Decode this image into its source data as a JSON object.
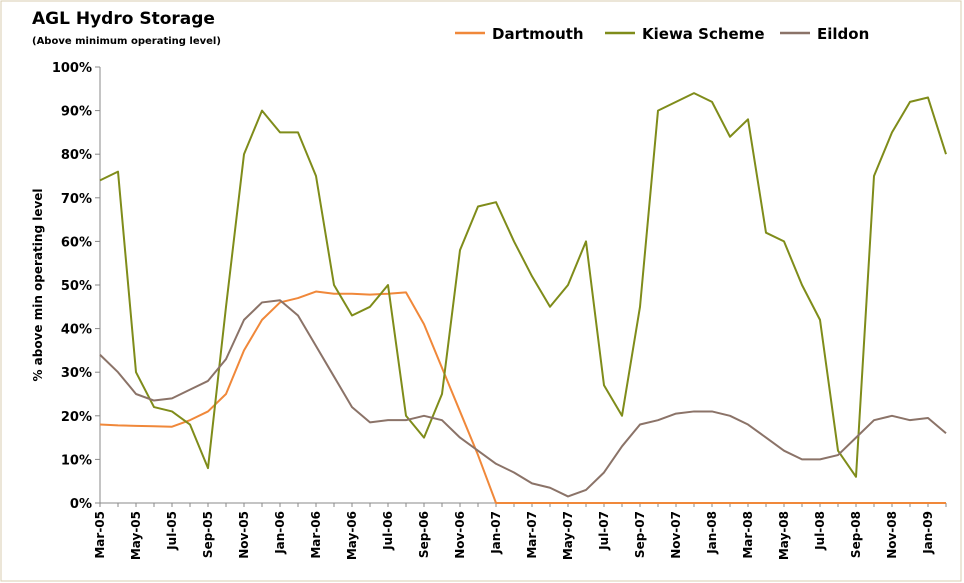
{
  "chart_data": {
    "type": "line",
    "title": "AGL Hydro Storage",
    "subtitle": "(Above minimum operating level)",
    "y_label": "% above min operating level",
    "categories": [
      "Mar-05",
      null,
      "May-05",
      null,
      "Jul-05",
      null,
      "Sep-05",
      null,
      "Nov-05",
      null,
      "Jan-06",
      null,
      "Mar-06",
      null,
      "May-06",
      null,
      "Jul-06",
      null,
      "Sep-06",
      null,
      "Nov-06",
      null,
      "Jan-07",
      null,
      "Mar-07",
      null,
      "May-07",
      null,
      "Jul-07",
      null,
      "Sep-07",
      null,
      "Nov-07",
      null,
      "Jan-08",
      null,
      "Mar-08",
      null,
      "May-08",
      null,
      "Jul-08",
      null,
      "Sep-08",
      null,
      "Nov-08",
      null,
      "Jan-09",
      null
    ],
    "series": [
      {
        "name": "Dartmouth",
        "color": "#f0883a",
        "values": [
          18,
          17.8,
          17.7,
          17.6,
          17.5,
          19,
          21,
          25,
          35,
          42,
          46,
          47,
          48.5,
          48,
          48,
          47.8,
          48,
          48.3,
          41,
          31,
          21,
          11,
          0,
          0,
          0,
          0,
          0,
          0,
          0,
          0,
          0,
          0,
          0,
          0,
          0,
          0,
          0,
          0,
          0,
          0,
          0,
          0,
          0,
          0,
          0,
          0,
          0,
          0
        ]
      },
      {
        "name": "Kiewa Scheme",
        "color": "#7f8c1a",
        "values": [
          74,
          76,
          30,
          22,
          21,
          18,
          8,
          45,
          80,
          90,
          85,
          85,
          75,
          50,
          43,
          45,
          50,
          20,
          15,
          25,
          58,
          68,
          69,
          60,
          52,
          45,
          50,
          60,
          27,
          20,
          45,
          90,
          92,
          94,
          92,
          84,
          88,
          62,
          60,
          50,
          42,
          12,
          6,
          75,
          85,
          92,
          93,
          80
        ]
      },
      {
        "name": "Eildon",
        "color": "#8b7368",
        "values": [
          34,
          30,
          25,
          23.5,
          24,
          26,
          28,
          33,
          42,
          46,
          46.5,
          43,
          36,
          29,
          22,
          18.5,
          19,
          19,
          20,
          19,
          15,
          12,
          9,
          7,
          4.5,
          3.5,
          1.5,
          3,
          7,
          13,
          18,
          19,
          20.5,
          21,
          21,
          20,
          18,
          15,
          12,
          10,
          10,
          11,
          15,
          19,
          20,
          19,
          19.5,
          16
        ]
      }
    ],
    "ylim": [
      0,
      100
    ],
    "yticks": [
      {
        "value": 0,
        "label": "0%"
      },
      {
        "value": 10,
        "label": "10%"
      },
      {
        "value": 20,
        "label": "20%"
      },
      {
        "value": 30,
        "label": "30%"
      },
      {
        "value": 40,
        "label": "40%"
      },
      {
        "value": 50,
        "label": "50%"
      },
      {
        "value": 60,
        "label": "60%"
      },
      {
        "value": 70,
        "label": "70%"
      },
      {
        "value": 80,
        "label": "80%"
      },
      {
        "value": 90,
        "label": "90%"
      },
      {
        "value": 100,
        "label": "100%"
      }
    ],
    "grid": false,
    "legend": "top"
  }
}
